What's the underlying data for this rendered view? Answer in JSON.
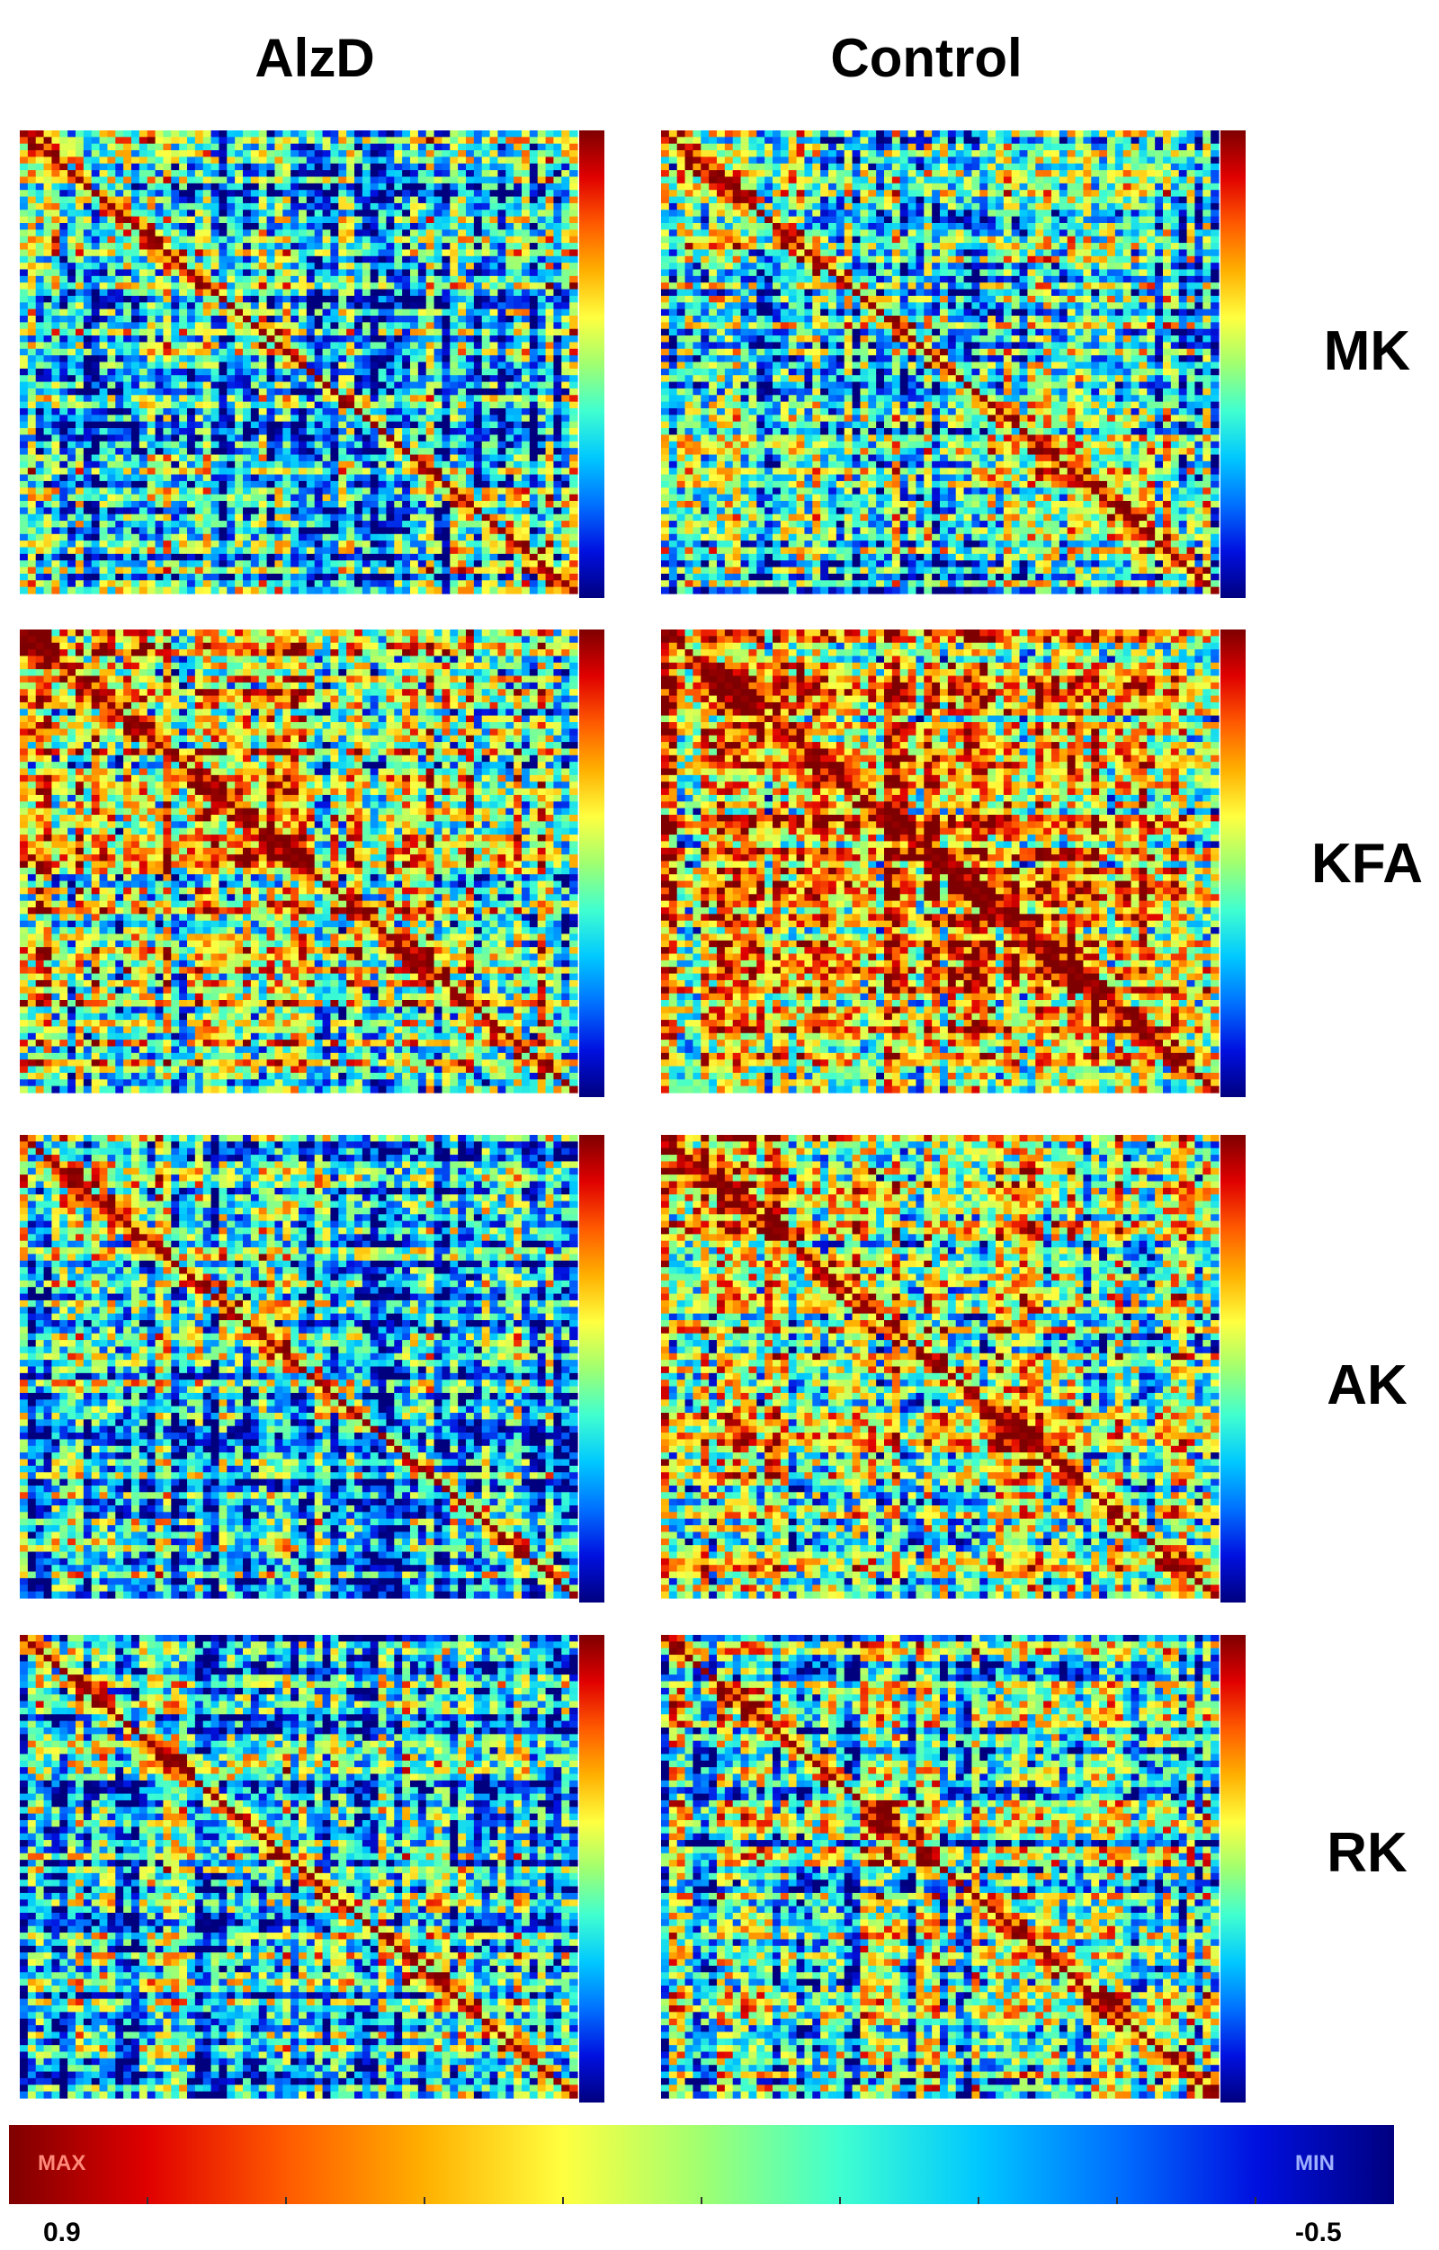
{
  "columns": [
    "AlzD",
    "Control"
  ],
  "rows": [
    "MK",
    "KFA",
    "AK",
    "RK"
  ],
  "colorbar": {
    "max_label": "MAX",
    "min_label": "MIN",
    "max_value": "0.9",
    "min_value": "-0.5",
    "colors": [
      "#7f0000",
      "#e00000",
      "#ff5a00",
      "#ffb000",
      "#ffff40",
      "#a0ff70",
      "#40ffd0",
      "#00c8ff",
      "#0070ff",
      "#0010e0",
      "#00007f"
    ]
  },
  "chart_data": {
    "type": "heatmap",
    "panels": [
      {
        "condition": "AlzD",
        "metric": "MK"
      },
      {
        "condition": "Control",
        "metric": "MK"
      },
      {
        "condition": "AlzD",
        "metric": "KFA"
      },
      {
        "condition": "Control",
        "metric": "KFA"
      },
      {
        "condition": "AlzD",
        "metric": "AK"
      },
      {
        "condition": "Control",
        "metric": "AK"
      },
      {
        "condition": "AlzD",
        "metric": "RK"
      },
      {
        "condition": "Control",
        "metric": "RK"
      }
    ],
    "value_range": [
      -0.5,
      0.9
    ]
  }
}
